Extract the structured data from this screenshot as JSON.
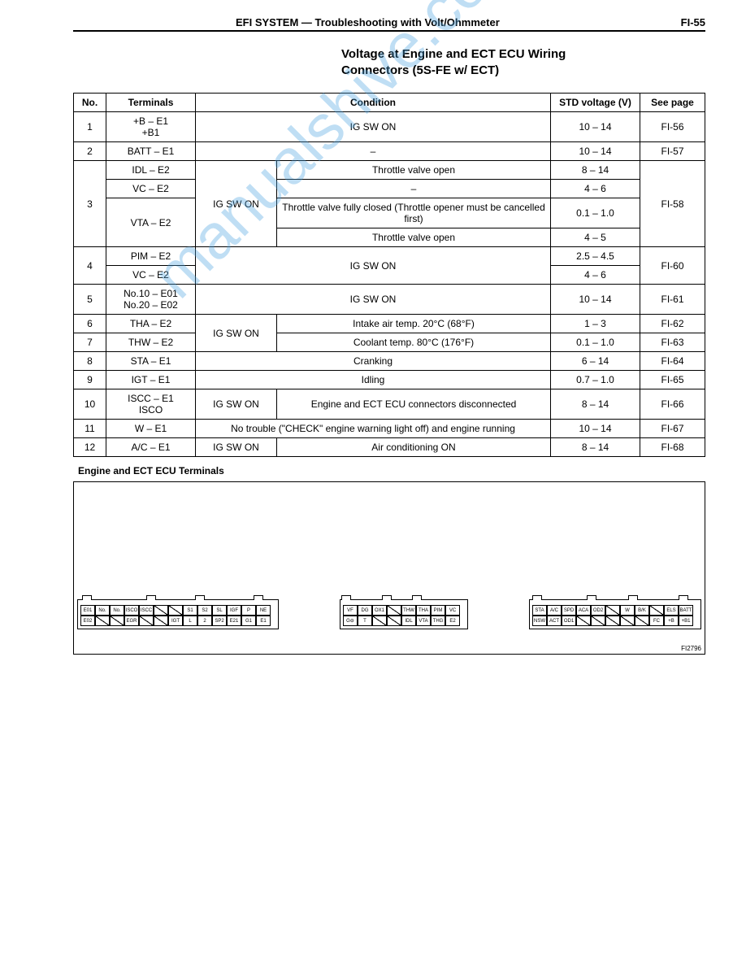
{
  "header": {
    "left": "EFI SYSTEM — Troubleshooting with Volt/Ohmmeter",
    "right": "FI-55"
  },
  "title_l1": "Voltage at Engine and ECT ECU Wiring",
  "title_l2": "Connectors (5S-FE w/ ECT)",
  "watermark": "manualshive.com",
  "columns": {
    "no": "No.",
    "terminals": "Terminals",
    "condition": "Condition",
    "std": "STD voltage (V)",
    "seepage": "See page"
  },
  "cells": {
    "r1_no": "1",
    "r1_term": "+B – E1\n+B1",
    "r1_cond": "IG SW ON",
    "r1_v": "10 – 14",
    "r1_p": "FI-56",
    "r2_no": "2",
    "r2_term": "BATT – E1",
    "r2_cond": "–",
    "r2_v": "10 – 14",
    "r2_p": "FI-57",
    "r3_no": "3",
    "r3_sub": "IG SW ON",
    "r3_p": "FI-58",
    "r3a_term": "IDL – E2",
    "r3a_cond": "Throttle valve open",
    "r3a_v": "8 – 14",
    "r3b_term": "VC – E2",
    "r3b_cond": "–",
    "r3b_v": "4 – 6",
    "r3c_term": "VTA – E2",
    "r3c_cond": "Throttle valve fully closed (Throttle opener must be cancelled first)",
    "r3c_v": "0.1 – 1.0",
    "r3d_cond": "Throttle valve open",
    "r3d_v": "4 – 5",
    "r4_no": "4",
    "r4_cond": "IG SW ON",
    "r4_p": "FI-60",
    "r4a_term": "PIM – E2",
    "r4a_v": "2.5 – 4.5",
    "r4b_term": "VC – E2",
    "r4b_v": "4 – 6",
    "r5_no": "5",
    "r5_term": "No.10 – E01\nNo.20 – E02",
    "r5_cond": "IG SW ON",
    "r5_v": "10 – 14",
    "r5_p": "FI-61",
    "r6_no": "6",
    "r6_term": "THA – E2",
    "r67_sub": "IG SW ON",
    "r6_cond": "Intake air temp. 20°C (68°F)",
    "r6_v": "1 – 3",
    "r6_p": "FI-62",
    "r7_no": "7",
    "r7_term": "THW – E2",
    "r7_cond": "Coolant temp. 80°C (176°F)",
    "r7_v": "0.1 – 1.0",
    "r7_p": "FI-63",
    "r8_no": "8",
    "r8_term": "STA – E1",
    "r8_cond": "Cranking",
    "r8_v": "6 – 14",
    "r8_p": "FI-64",
    "r9_no": "9",
    "r9_term": "IGT – E1",
    "r9_cond": "Idling",
    "r9_v": "0.7 – 1.0",
    "r9_p": "FI-65",
    "r10_no": "10",
    "r10_term": "ISCC – E1\nISCO",
    "r10_sub": "IG SW ON",
    "r10_cond": "Engine and ECT ECU connectors disconnected",
    "r10_v": "8 – 14",
    "r10_p": "FI-66",
    "r11_no": "11",
    "r11_term": "W – E1",
    "r11_cond": "No trouble (\"CHECK\" engine warning light off) and engine running",
    "r11_v": "10 – 14",
    "r11_p": "FI-67",
    "r12_no": "12",
    "r12_term": "A/C – E1",
    "r12_sub": "IG SW ON",
    "r12_cond": "Air conditioning ON",
    "r12_v": "8 – 14",
    "r12_p": "FI-68"
  },
  "terminals_label": "Engine and ECT ECU Terminals",
  "figref": "FI2796",
  "conn": {
    "a_top": [
      "E01",
      "No.\n10",
      "No.\n20",
      "ISCO",
      "ISCC",
      "",
      "",
      "S1",
      "S2",
      "SL",
      "IGF",
      "P",
      "NE"
    ],
    "a_bot": [
      "E02",
      "",
      "",
      "EGR",
      "",
      "",
      "IGT",
      "L",
      "2",
      "SP2",
      "E21",
      "G1",
      "E1"
    ],
    "b_top": [
      "VF",
      "DG",
      "OX1",
      "",
      "THW",
      "THA",
      "PIM",
      "VC"
    ],
    "b_bot": [
      "G⊖",
      "T",
      "",
      "",
      "IDL",
      "VTA",
      "THG",
      "E2"
    ],
    "c_top": [
      "STA",
      "A/C",
      "SPD",
      "ACA",
      "OD2",
      "",
      "W",
      "B/K",
      "",
      "ELS",
      "BATT"
    ],
    "c_bot": [
      "NSW",
      "ACT",
      "OD1",
      "",
      "",
      "",
      "",
      "",
      "FC",
      "+B",
      "+B1"
    ]
  }
}
